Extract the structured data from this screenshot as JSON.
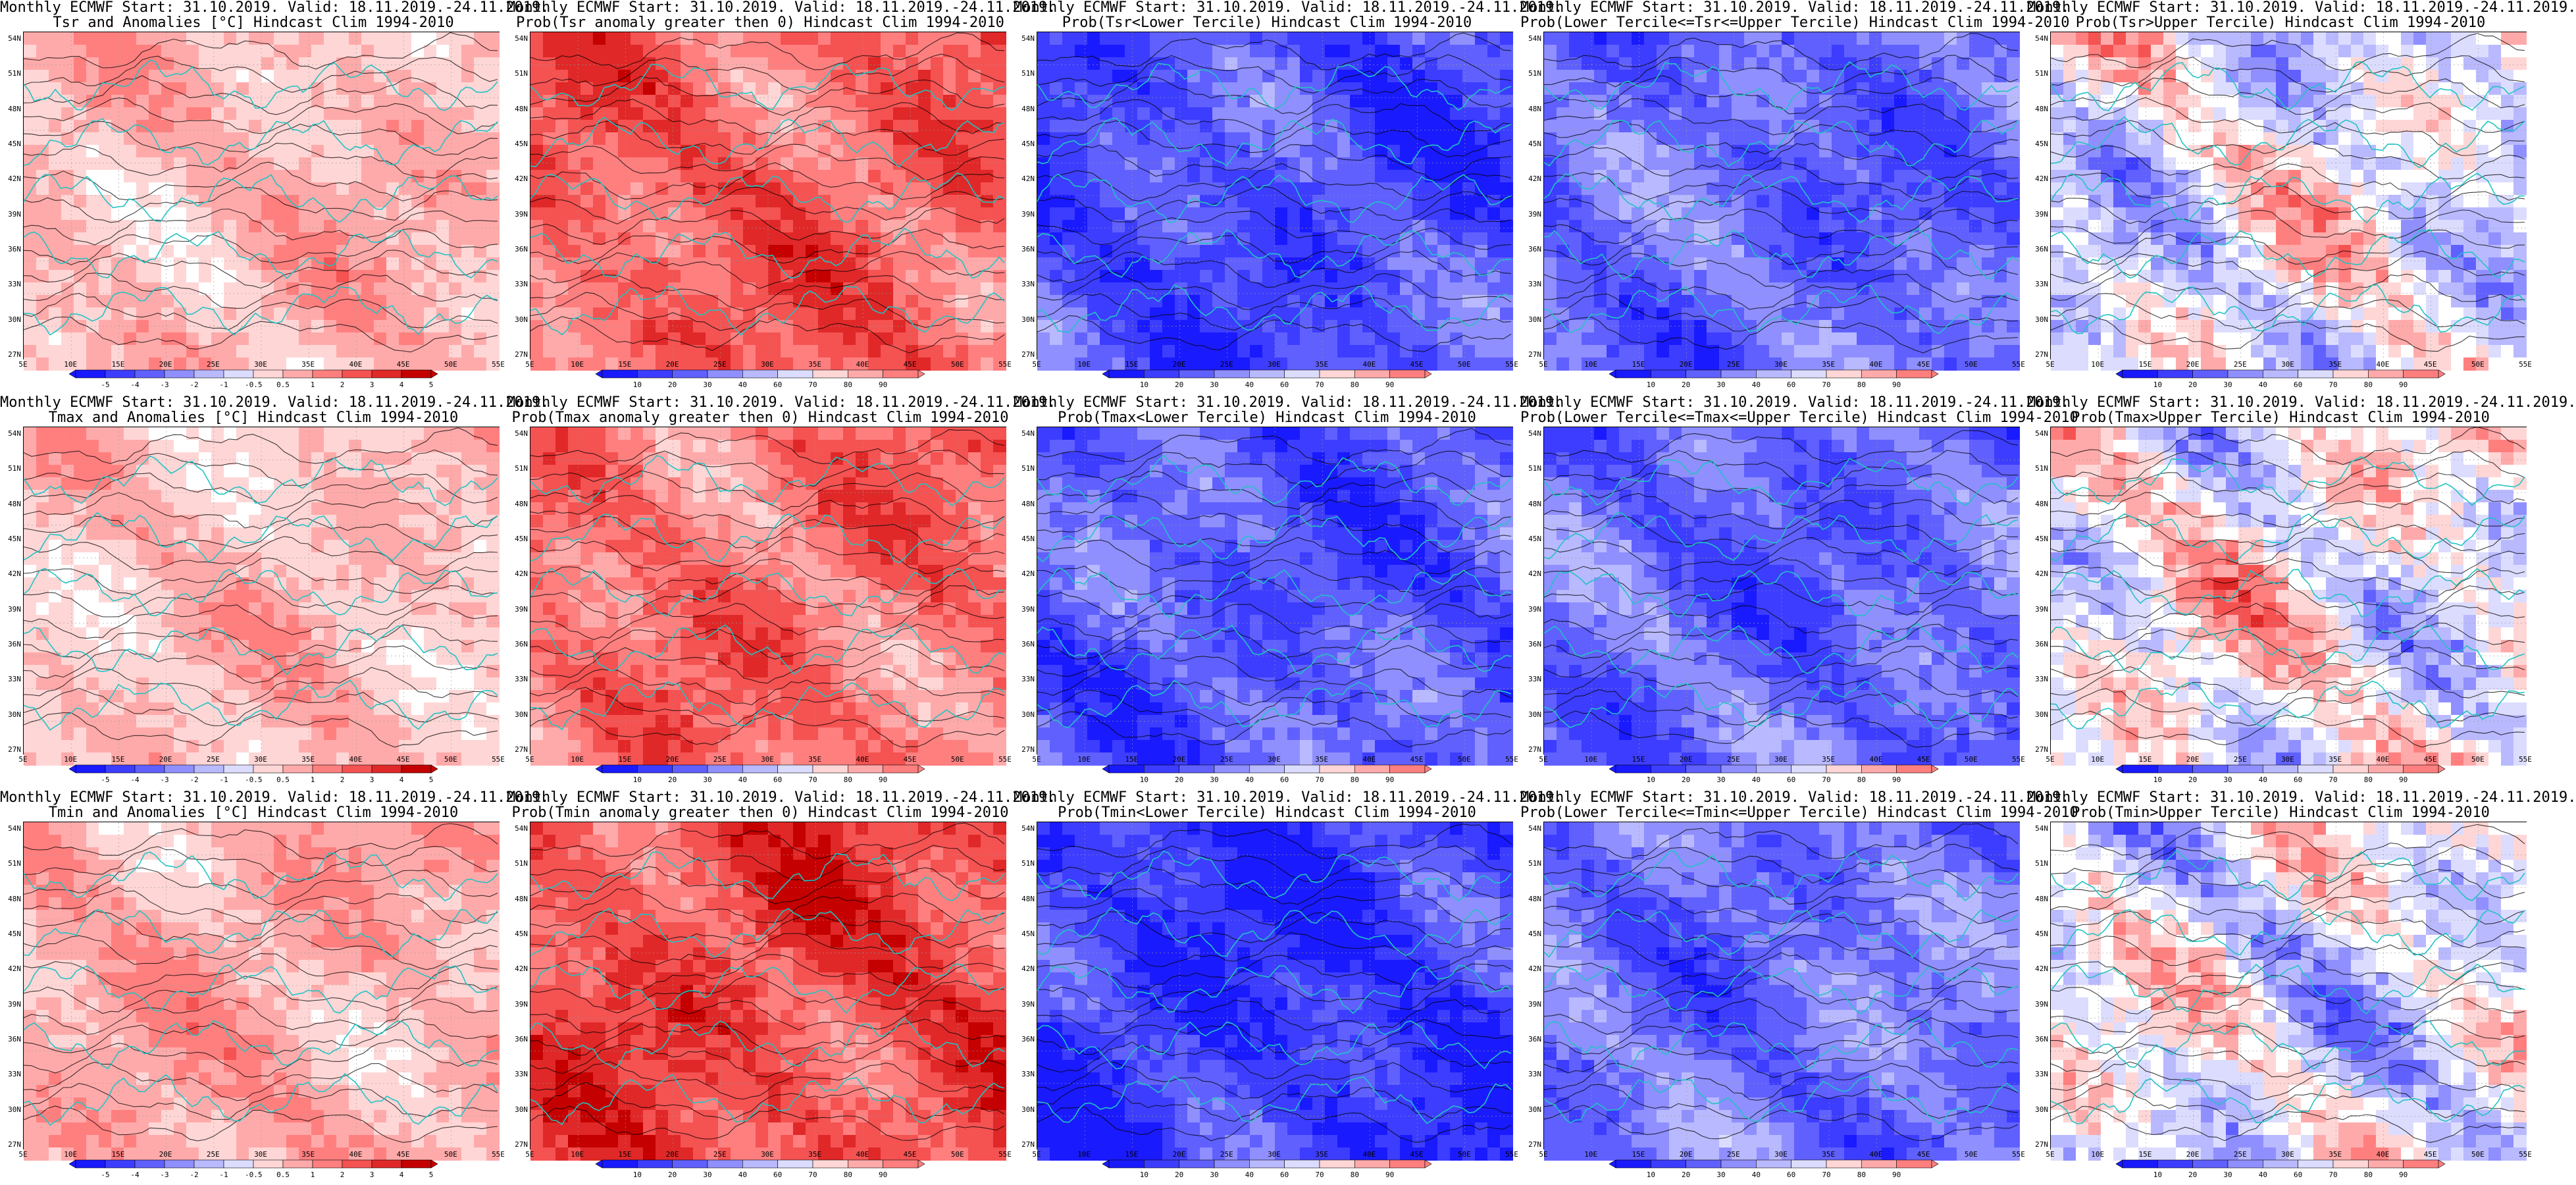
{
  "colors": {
    "blue_scale": [
      "#1a1aff",
      "#3d3dff",
      "#6060ff",
      "#8f8fff",
      "#b9b9ff",
      "#dcdcff",
      "#ffffff"
    ],
    "red_scale": [
      "#ffffff",
      "#ffd6d6",
      "#ffaaaa",
      "#ff7f7f",
      "#f55252",
      "#e02828",
      "#c40000"
    ],
    "coast": "#22c3c3",
    "contour": "#000000"
  },
  "lat_labels": [
    "54N",
    "51N",
    "48N",
    "45N",
    "42N",
    "39N",
    "36N",
    "33N",
    "30N",
    "27N"
  ],
  "lon_labels": [
    "5E",
    "10E",
    "15E",
    "20E",
    "25E",
    "30E",
    "35E",
    "40E",
    "45E",
    "50E",
    "55E"
  ],
  "colorbars": {
    "anomaly": [
      "-5",
      "-4",
      "-3",
      "-2",
      "-1",
      "-0.5",
      "0.5",
      "1",
      "2",
      "3",
      "4",
      "5"
    ],
    "probability": [
      "10",
      "20",
      "30",
      "40",
      "60",
      "70",
      "80",
      "90"
    ]
  },
  "rows": [
    {
      "panels": [
        {
          "title1": "Monthly ECMWF Start: 31.10.2019. Valid: 18.11.2019.-24.11.2019.",
          "title2": "Tsr and Anomalies [°C] Hindcast Clim 1994-2010",
          "kind": "anomaly",
          "level": 0.35
        },
        {
          "title1": "Monthly ECMWF Start: 31.10.2019. Valid: 18.11.2019.-24.11.2019.",
          "title2": "Prob(Tsr anomaly greater then 0) Hindcast Clim 1994-2010",
          "kind": "prob_red",
          "level": 0.6
        },
        {
          "title1": "Monthly ECMWF Start: 31.10.2019. Valid: 18.11.2019.-24.11.2019.",
          "title2": "Prob(Tsr<Lower Tercile) Hindcast Clim 1994-2010",
          "kind": "prob_blue",
          "level": 0.75
        },
        {
          "title1": "Monthly ECMWF Start: 31.10.2019. Valid: 18.11.2019.-24.11.2019.",
          "title2": "Prob(Lower Tercile<=Tsr<=Upper Tercile) Hindcast Clim 1994-2010",
          "kind": "prob_blue",
          "level": 0.65
        },
        {
          "title1": "Monthly ECMWF Start: 31.10.2019. Valid: 18.11.2019.-24.11.2019.",
          "title2": "Prob(Tsr>Upper Tercile) Hindcast Clim 1994-2010",
          "kind": "prob_mixed",
          "level": 0.45
        }
      ]
    },
    {
      "panels": [
        {
          "title1": "Monthly ECMWF Start: 31.10.2019. Valid: 18.11.2019.-24.11.2019.",
          "title2": "Tmax and Anomalies [°C] Hindcast Clim 1994-2010",
          "kind": "anomaly",
          "level": 0.3
        },
        {
          "title1": "Monthly ECMWF Start: 31.10.2019. Valid: 18.11.2019.-24.11.2019.",
          "title2": "Prob(Tmax anomaly greater then 0) Hindcast Clim 1994-2010",
          "kind": "prob_red",
          "level": 0.55
        },
        {
          "title1": "Monthly ECMWF Start: 31.10.2019. Valid: 18.11.2019.-24.11.2019.",
          "title2": "Prob(Tmax<Lower Tercile) Hindcast Clim 1994-2010",
          "kind": "prob_blue",
          "level": 0.7
        },
        {
          "title1": "Monthly ECMWF Start: 31.10.2019. Valid: 18.11.2019.-24.11.2019.",
          "title2": "Prob(Lower Tercile<=Tmax<=Upper Tercile) Hindcast Clim 1994-2010",
          "kind": "prob_blue",
          "level": 0.65
        },
        {
          "title1": "Monthly ECMWF Start: 31.10.2019. Valid: 18.11.2019.-24.11.2019.",
          "title2": "Prob(Tmax>Upper Tercile) Hindcast Clim 1994-2010",
          "kind": "prob_mixed",
          "level": 0.5
        }
      ]
    },
    {
      "panels": [
        {
          "title1": "Monthly ECMWF Start: 31.10.2019. Valid: 18.11.2019.-24.11.2019.",
          "title2": "Tmin and Anomalies [°C] Hindcast Clim 1994-2010",
          "kind": "anomaly",
          "level": 0.4
        },
        {
          "title1": "Monthly ECMWF Start: 31.10.2019. Valid: 18.11.2019.-24.11.2019.",
          "title2": "Prob(Tmin anomaly greater then 0) Hindcast Clim 1994-2010",
          "kind": "prob_red",
          "level": 0.7
        },
        {
          "title1": "Monthly ECMWF Start: 31.10.2019. Valid: 18.11.2019.-24.11.2019.",
          "title2": "Prob(Tmin<Lower Tercile) Hindcast Clim 1994-2010",
          "kind": "prob_blue",
          "level": 0.85
        },
        {
          "title1": "Monthly ECMWF Start: 31.10.2019. Valid: 18.11.2019.-24.11.2019.",
          "title2": "Prob(Lower Tercile<=Tmin<=Upper Tercile) Hindcast Clim 1994-2010",
          "kind": "prob_blue",
          "level": 0.6
        },
        {
          "title1": "Monthly ECMWF Start: 31.10.2019. Valid: 18.11.2019.-24.11.2019.",
          "title2": "Prob(Tmin>Upper Tercile) Hindcast Clim 1994-2010",
          "kind": "prob_mixed",
          "level": 0.45
        }
      ]
    }
  ]
}
